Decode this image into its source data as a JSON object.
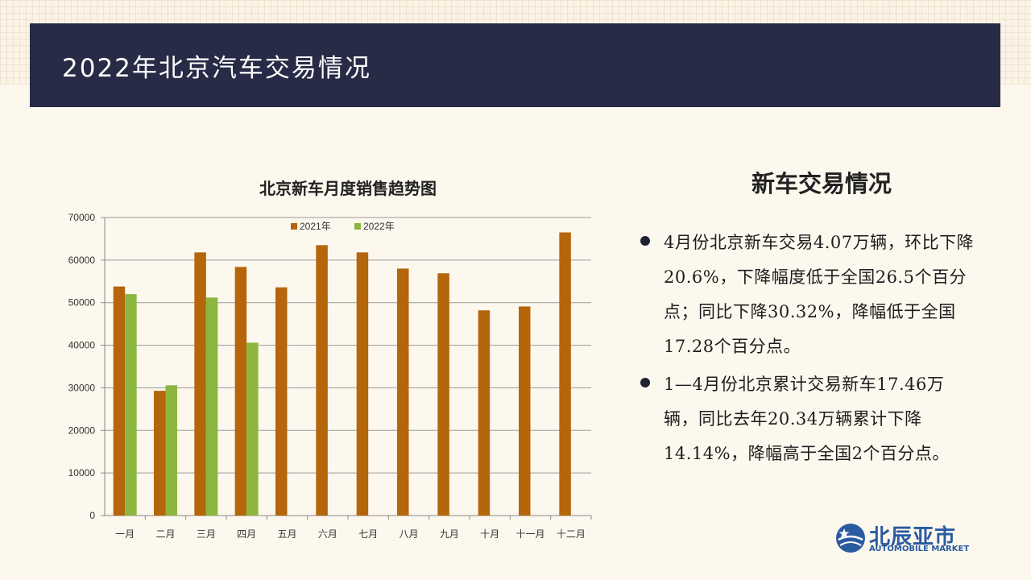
{
  "header": {
    "title": "2022年北京汽车交易情况"
  },
  "chart_data": {
    "type": "bar",
    "title": "北京新车月度销售趋势图",
    "categories": [
      "一月",
      "二月",
      "三月",
      "四月",
      "五月",
      "六月",
      "七月",
      "八月",
      "九月",
      "十月",
      "十一月",
      "十二月"
    ],
    "series": [
      {
        "name": "2021年",
        "color": "#b5650a",
        "values": [
          53800,
          29300,
          61800,
          58400,
          53600,
          63500,
          61800,
          58000,
          56900,
          48200,
          49100,
          66500
        ]
      },
      {
        "name": "2022年",
        "color": "#8cb63f",
        "values": [
          52000,
          30600,
          51200,
          40600,
          null,
          null,
          null,
          null,
          null,
          null,
          null,
          null
        ]
      }
    ],
    "ylim": [
      0,
      70000
    ],
    "yticks": [
      0,
      10000,
      20000,
      30000,
      40000,
      50000,
      60000,
      70000
    ],
    "grid": true,
    "legend": "top-center"
  },
  "panel": {
    "title": "新车交易情况",
    "bullets": [
      "4月份北京新车交易4.07万辆，环比下降20.6%，下降幅度低于全国26.5个百分点；同比下降30.32%，降幅低于全国17.28个百分点。",
      "1—4月份北京累计交易新车17.46万辆，同比去年20.34万辆累计下降14.14%，降幅高于全国2个百分点。"
    ]
  },
  "logo": {
    "cn": "北辰亚市",
    "en": "AUTOMOBILE MARKET"
  }
}
